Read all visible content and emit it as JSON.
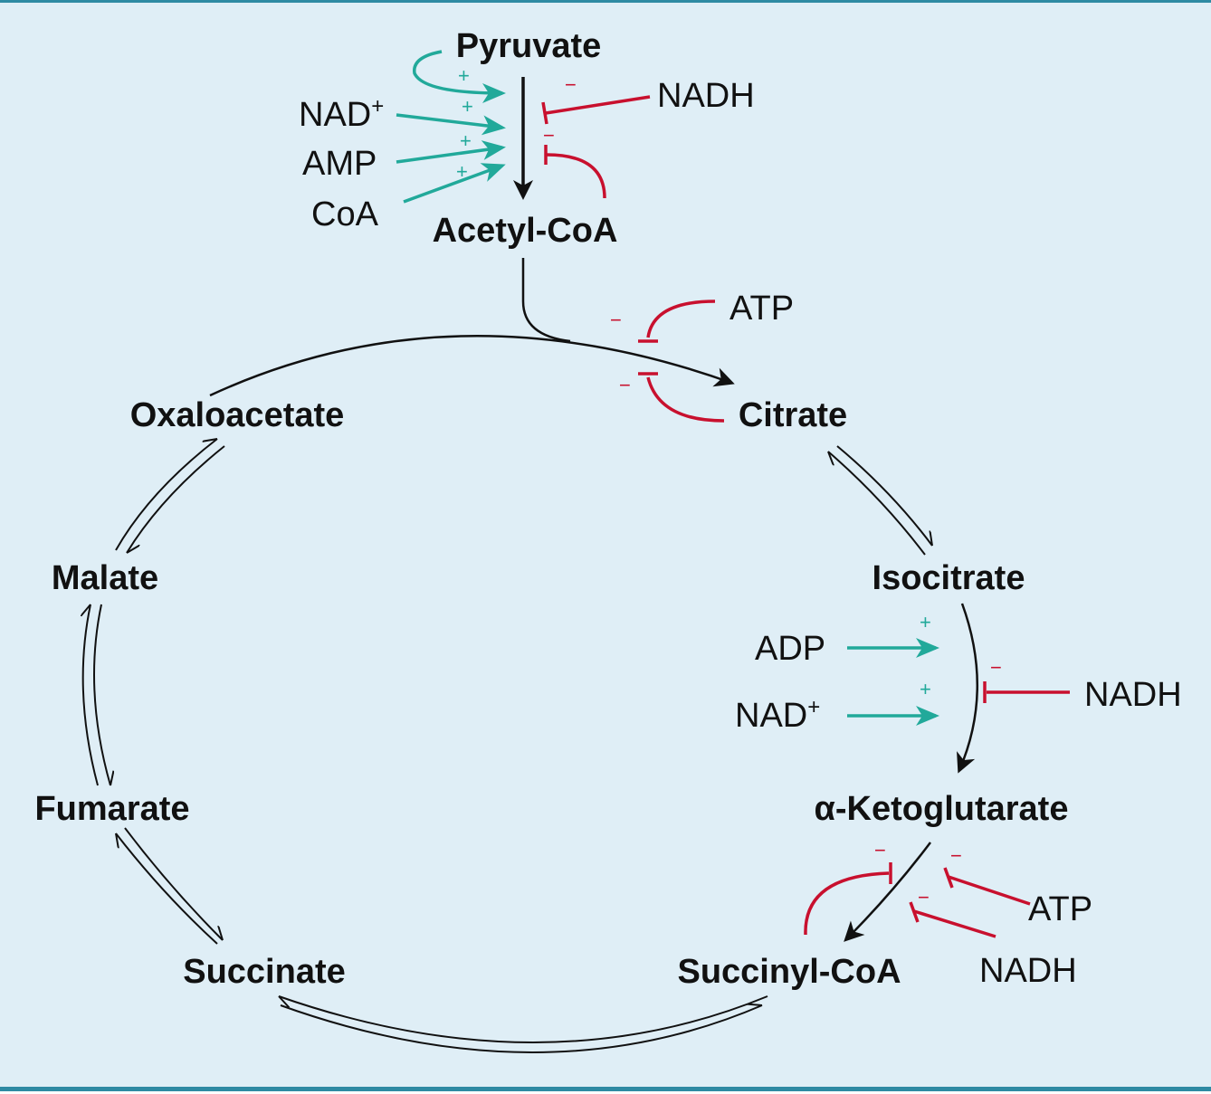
{
  "metabolites": {
    "pyruvate": "Pyruvate",
    "acetyl_coa": "Acetyl-CoA",
    "citrate": "Citrate",
    "isocitrate": "Isocitrate",
    "alpha_ketoglutarate": "α-Ketoglutarate",
    "succinyl_coa": "Succinyl-CoA",
    "succinate": "Succinate",
    "fumarate": "Fumarate",
    "malate": "Malate",
    "oxaloacetate": "Oxaloacetate"
  },
  "effectors": {
    "pdh_nad": "NAD",
    "pdh_nad_charge": "+",
    "pdh_amp": "AMP",
    "pdh_coa": "CoA",
    "pdh_nadh": "NADH",
    "cs_atp": "ATP",
    "idh_adp": "ADP",
    "idh_nad": "NAD",
    "idh_nad_charge": "+",
    "idh_nadh": "NADH",
    "akgdh_atp": "ATP",
    "akgdh_nadh": "NADH"
  },
  "signs": {
    "plus": "+",
    "minus": "−"
  },
  "colors": {
    "activator": "#21a99a",
    "inhibitor": "#c8102e",
    "pathway": "#111111",
    "background": "#dfeef6",
    "border": "#2e8aa3"
  }
}
